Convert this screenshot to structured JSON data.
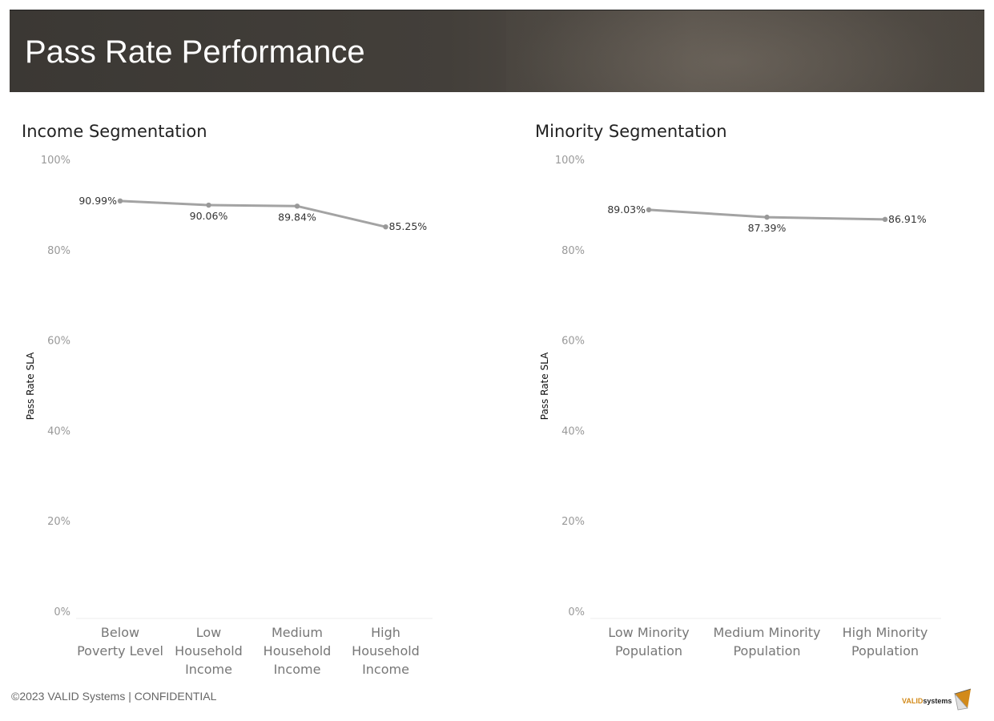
{
  "header": {
    "title": "Pass Rate Performance"
  },
  "footer": {
    "copyright": "©2023  VALID Systems | CONFIDENTIAL"
  },
  "logo": {
    "brand": "VALID",
    "suffix": "systems"
  },
  "colors": {
    "line": "#a3a3a3",
    "banner": "#403c37",
    "accent": "#d28a1a"
  },
  "chart_data": [
    {
      "type": "line",
      "title": "Income Segmentation",
      "ylabel": "Pass Rate SLA",
      "xlabel": "",
      "ylim": [
        0,
        100
      ],
      "yticks": [
        0,
        20,
        40,
        60,
        80,
        100
      ],
      "ytick_labels": [
        "0%",
        "20%",
        "40%",
        "60%",
        "80%",
        "100%"
      ],
      "categories": [
        [
          "Below",
          "Poverty Level"
        ],
        [
          "Low",
          "Household",
          "Income"
        ],
        [
          "Medium",
          "Household",
          "Income"
        ],
        [
          "High",
          "Household",
          "Income"
        ]
      ],
      "values": [
        90.99,
        90.06,
        89.84,
        85.25
      ],
      "value_labels": [
        "90.99%",
        "90.06%",
        "89.84%",
        "85.25%"
      ],
      "label_positions": [
        "left",
        "below",
        "below",
        "right"
      ],
      "grid": false,
      "legend": "none"
    },
    {
      "type": "line",
      "title": "Minority Segmentation",
      "ylabel": "Pass Rate SLA",
      "xlabel": "",
      "ylim": [
        0,
        100
      ],
      "yticks": [
        0,
        20,
        40,
        60,
        80,
        100
      ],
      "ytick_labels": [
        "0%",
        "20%",
        "40%",
        "60%",
        "80%",
        "100%"
      ],
      "categories": [
        [
          "Low Minority",
          "Population"
        ],
        [
          "Medium Minority",
          "Population"
        ],
        [
          "High Minority",
          "Population"
        ]
      ],
      "values": [
        89.03,
        87.39,
        86.91
      ],
      "value_labels": [
        "89.03%",
        "87.39%",
        "86.91%"
      ],
      "label_positions": [
        "left",
        "below",
        "right"
      ],
      "grid": false,
      "legend": "none"
    }
  ]
}
